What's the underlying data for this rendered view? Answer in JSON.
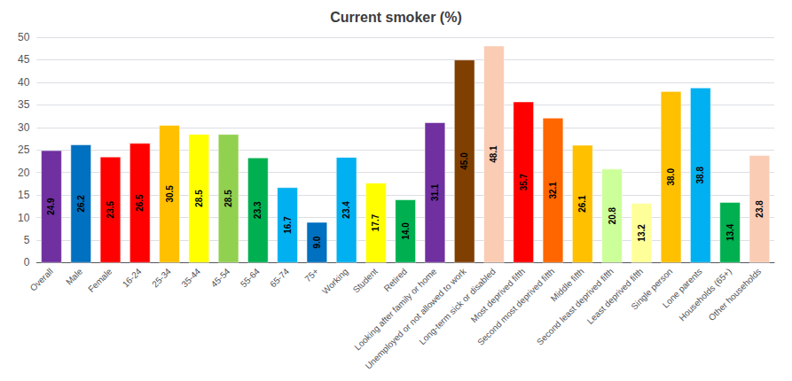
{
  "chart_data": {
    "type": "bar",
    "title": "Current smoker (%)",
    "categories": [
      "Overall",
      "Male",
      "Female",
      "16-24",
      "25-34",
      "35-44",
      "45-54",
      "55-64",
      "65-74",
      "75+",
      "Working",
      "Student",
      "Retired",
      "Looking after family or home",
      "Unemployed or not allowed to work",
      "Long-term sick or disabled",
      "Most deprived fifth",
      "Second most deprived fifth",
      "Middle fifth",
      "Second least deprived fifth",
      "Least deprived fifth",
      "Single person",
      "Lone parents",
      "Households (65+)",
      "Other households"
    ],
    "values": [
      24.9,
      26.2,
      23.5,
      26.5,
      30.5,
      28.5,
      28.5,
      23.3,
      16.7,
      9.0,
      23.4,
      17.7,
      14.0,
      31.1,
      45.0,
      48.1,
      35.7,
      32.1,
      26.1,
      20.8,
      13.2,
      38.0,
      38.8,
      13.4,
      23.8
    ],
    "value_labels": [
      "24.9",
      "26.2",
      "23.5",
      "26.5",
      "30.5",
      "28.5",
      "28.5",
      "23.3",
      "16.7",
      "9.0",
      "23.4",
      "17.7",
      "14.0",
      "31.1",
      "45.0",
      "48.1",
      "35.7",
      "32.1",
      "26.1",
      "20.8",
      "13.2",
      "38.0",
      "38.8",
      "13.4",
      "23.8"
    ],
    "colors": [
      "#7030A0",
      "#0070C0",
      "#FF0000",
      "#FF0000",
      "#FFC000",
      "#FFFF00",
      "#92D050",
      "#00B050",
      "#00B0F0",
      "#0070C0",
      "#00B0F0",
      "#FFFF00",
      "#00B050",
      "#7030A0",
      "#7F3F00",
      "#FACCB4",
      "#FF0000",
      "#FF6600",
      "#FFC000",
      "#CCFF99",
      "#FFFF99",
      "#FFC000",
      "#00B0F0",
      "#00B050",
      "#FACCB4"
    ],
    "ylim": [
      0,
      50
    ],
    "yticks": [
      0,
      5,
      10,
      15,
      20,
      25,
      30,
      35,
      40,
      45,
      50
    ],
    "grid": true,
    "data_labels": true
  }
}
